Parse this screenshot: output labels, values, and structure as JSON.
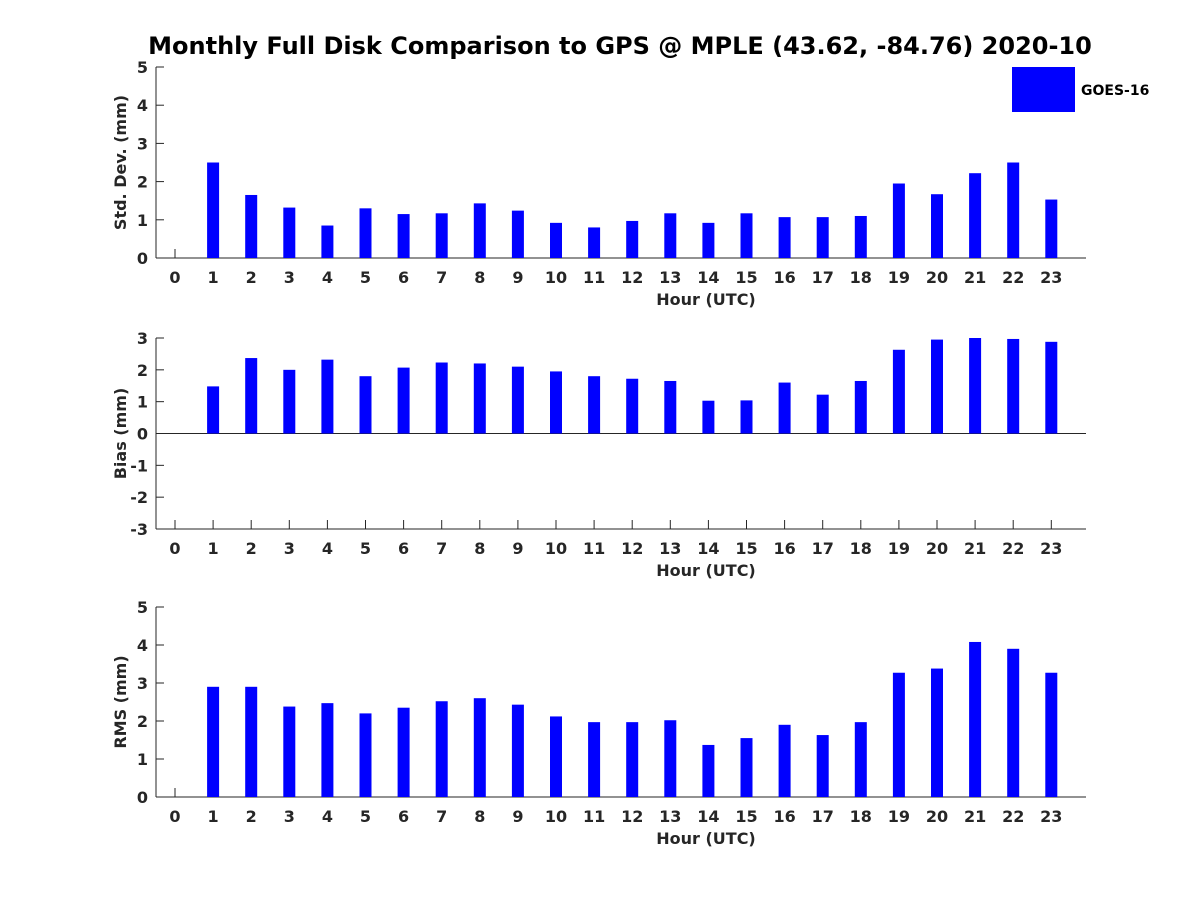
{
  "chart_data": {
    "title": "Monthly Full Disk Comparison to GPS @ MPLE (43.62, -84.76) 2020-10",
    "type": "bar",
    "colors": {
      "bar": "#0000ff",
      "axis": "#262626"
    },
    "legend": {
      "label": "GOES-16",
      "position": "top-right"
    },
    "categories": [
      "0",
      "1",
      "2",
      "3",
      "4",
      "5",
      "6",
      "7",
      "8",
      "9",
      "10",
      "11",
      "12",
      "13",
      "14",
      "15",
      "16",
      "17",
      "18",
      "19",
      "20",
      "21",
      "22",
      "23"
    ],
    "panels": [
      {
        "ylabel": "Std. Dev. (mm)",
        "xlabel": "Hour (UTC)",
        "ylim": [
          0,
          5
        ],
        "yticks": [
          "0",
          "1",
          "2",
          "3",
          "4",
          "5"
        ],
        "values": [
          null,
          2.5,
          1.65,
          1.32,
          0.85,
          1.3,
          1.15,
          1.17,
          1.43,
          1.24,
          0.92,
          0.8,
          0.97,
          1.17,
          0.92,
          1.17,
          1.07,
          1.07,
          1.1,
          1.95,
          1.67,
          2.22,
          2.5,
          1.53
        ]
      },
      {
        "ylabel": "Bias (mm)",
        "xlabel": "Hour (UTC)",
        "ylim": [
          -3,
          3
        ],
        "yticks": [
          "-3",
          "-2",
          "-1",
          "0",
          "1",
          "2",
          "3"
        ],
        "values": [
          null,
          1.48,
          2.37,
          2.0,
          2.32,
          1.8,
          2.07,
          2.23,
          2.2,
          2.1,
          1.95,
          1.8,
          1.72,
          1.65,
          1.03,
          1.04,
          1.6,
          1.22,
          1.65,
          2.63,
          2.95,
          3.0,
          2.97,
          2.88
        ]
      },
      {
        "ylabel": "RMS (mm)",
        "xlabel": "Hour (UTC)",
        "ylim": [
          0,
          5
        ],
        "yticks": [
          "0",
          "1",
          "2",
          "3",
          "4",
          "5"
        ],
        "values": [
          null,
          2.9,
          2.9,
          2.38,
          2.47,
          2.2,
          2.35,
          2.52,
          2.6,
          2.43,
          2.12,
          1.97,
          1.97,
          2.02,
          1.37,
          1.55,
          1.9,
          1.63,
          1.97,
          3.27,
          3.38,
          4.08,
          3.9,
          3.27
        ]
      }
    ]
  }
}
